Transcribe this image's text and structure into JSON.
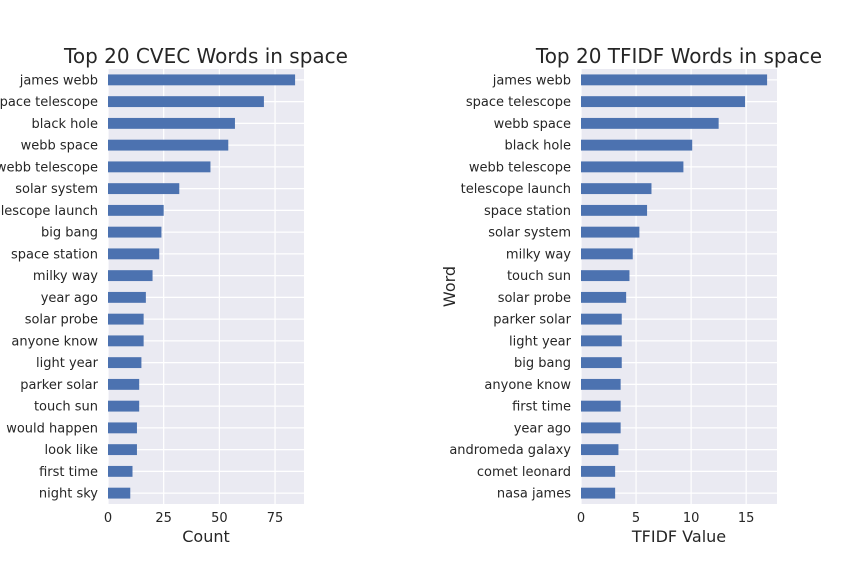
{
  "chart_data": [
    {
      "type": "bar",
      "orientation": "horizontal",
      "title": "Top 20 CVEC Words in space",
      "xlabel": "Count",
      "ylabel": "",
      "xlim": [
        0,
        88
      ],
      "xticks": [
        "0",
        "25",
        "50",
        "75"
      ],
      "grid": true,
      "categories": [
        "james webb",
        "space telescope",
        "black hole",
        "webb space",
        "webb telescope",
        "solar system",
        "telescope launch",
        "big bang",
        "space station",
        "milky way",
        "year ago",
        "solar probe",
        "anyone know",
        "light year",
        "parker solar",
        "touch sun",
        "would happen",
        "look like",
        "first time",
        "night sky"
      ],
      "values": [
        84,
        70,
        57,
        54,
        46,
        32,
        25,
        24,
        23,
        20,
        17,
        16,
        16,
        15,
        14,
        14,
        13,
        13,
        11,
        10
      ],
      "color": "#4c72b0"
    },
    {
      "type": "bar",
      "orientation": "horizontal",
      "title": "Top 20 TFIDF Words in space",
      "xlabel": "TFIDF Value",
      "ylabel": "Word",
      "xlim": [
        0,
        17.8
      ],
      "xticks": [
        "0",
        "5",
        "10",
        "15"
      ],
      "grid": true,
      "categories": [
        "james webb",
        "space telescope",
        "webb space",
        "black hole",
        "webb telescope",
        "telescope launch",
        "space station",
        "solar system",
        "milky way",
        "touch sun",
        "solar probe",
        "parker solar",
        "light year",
        "big bang",
        "anyone know",
        "first time",
        "year ago",
        "andromeda galaxy",
        "comet leonard",
        "nasa james"
      ],
      "values": [
        16.9,
        14.9,
        12.5,
        10.1,
        9.3,
        6.4,
        6.0,
        5.3,
        4.7,
        4.4,
        4.1,
        3.7,
        3.7,
        3.7,
        3.6,
        3.6,
        3.6,
        3.4,
        3.1,
        3.1
      ],
      "color": "#4c72b0"
    }
  ]
}
